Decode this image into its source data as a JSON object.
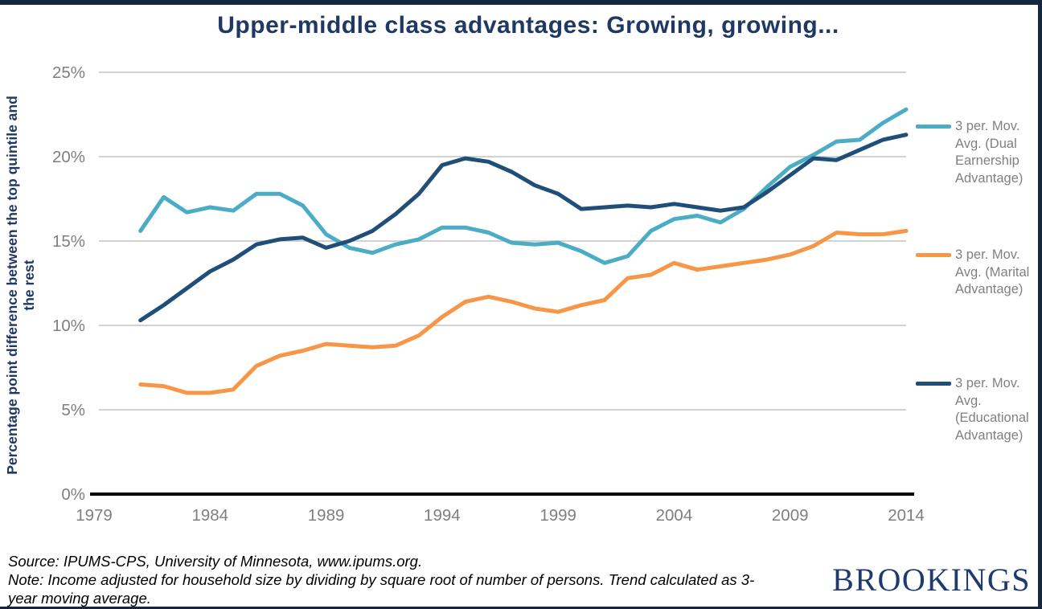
{
  "chart_data": {
    "type": "line",
    "title": "Upper-middle class advantages: Growing, growing...",
    "ylabel": "Percentage point difference between the top quintile and the rest",
    "ylabel_lines": [
      "Percentage point difference between the top quintile and",
      "the rest"
    ],
    "xlabel": "",
    "xlim": [
      1979,
      2014
    ],
    "ylim": [
      0,
      25
    ],
    "grid": "horizontal",
    "legend_position": "right",
    "y_ticks": [
      {
        "label": "25%",
        "value": 25
      },
      {
        "label": "20%",
        "value": 20
      },
      {
        "label": "15%",
        "value": 15
      },
      {
        "label": "10%",
        "value": 10
      },
      {
        "label": "5%",
        "value": 5
      },
      {
        "label": "0%",
        "value": 0
      }
    ],
    "x_ticks": [
      {
        "label": "1979",
        "value": 1979
      },
      {
        "label": "1984",
        "value": 1984
      },
      {
        "label": "1989",
        "value": 1989
      },
      {
        "label": "1994",
        "value": 1994
      },
      {
        "label": "1999",
        "value": 1999
      },
      {
        "label": "2004",
        "value": 2004
      },
      {
        "label": "2009",
        "value": 2009
      },
      {
        "label": "2014",
        "value": 2014
      }
    ],
    "years": [
      1981,
      1982,
      1983,
      1984,
      1985,
      1986,
      1987,
      1988,
      1989,
      1990,
      1991,
      1992,
      1993,
      1994,
      1995,
      1996,
      1997,
      1998,
      1999,
      2000,
      2001,
      2002,
      2003,
      2004,
      2005,
      2006,
      2007,
      2008,
      2009,
      2010,
      2011,
      2012,
      2013,
      2014
    ],
    "series": [
      {
        "name": "3 per. Mov. Avg. (Dual Earnership Advantage)",
        "color": "#4BACC6",
        "values": [
          15.6,
          17.6,
          16.7,
          17.0,
          16.8,
          17.8,
          17.8,
          17.1,
          15.4,
          14.6,
          14.3,
          14.8,
          15.1,
          15.8,
          15.8,
          15.5,
          14.9,
          14.8,
          14.9,
          14.4,
          13.7,
          14.1,
          15.6,
          16.3,
          16.5,
          16.1,
          16.9,
          18.2,
          19.4,
          20.1,
          20.9,
          21.0,
          22.0,
          22.8
        ]
      },
      {
        "name": "3 per. Mov. Avg. (Marital Advantage)",
        "color": "#F79646",
        "values": [
          6.5,
          6.4,
          6.0,
          6.0,
          6.2,
          7.6,
          8.2,
          8.5,
          8.9,
          8.8,
          8.7,
          8.8,
          9.4,
          10.5,
          11.4,
          11.7,
          11.4,
          11.0,
          10.8,
          11.2,
          11.5,
          12.8,
          13.0,
          13.7,
          13.3,
          13.5,
          13.7,
          13.9,
          14.2,
          14.7,
          15.5,
          15.4,
          15.4,
          15.6
        ]
      },
      {
        "name": "3 per. Mov. Avg. (Educational Advantage)",
        "color": "#1F4E79",
        "values": [
          10.3,
          11.2,
          12.2,
          13.2,
          13.9,
          14.8,
          15.1,
          15.2,
          14.6,
          15.0,
          15.6,
          16.6,
          17.8,
          19.5,
          19.9,
          19.7,
          19.1,
          18.3,
          17.8,
          16.9,
          17.0,
          17.1,
          17.0,
          17.2,
          17.0,
          16.8,
          17.0,
          17.9,
          18.9,
          19.9,
          19.8,
          20.4,
          21.0,
          21.3
        ]
      }
    ]
  },
  "footer": {
    "source_line": "Source: IPUMS-CPS, University of Minnesota, www.ipums.org.",
    "note_line1": "Note: Income adjusted for household size by dividing by square root of number of persons. Trend calculated as 3-",
    "note_line2": "year moving average.",
    "logo_text": "BROOKINGS"
  },
  "colors": {
    "title_navy": "#1F3864",
    "frame_navy": "#14273F",
    "logo_navy": "#1E3A6E",
    "tick_gray": "#7F7F7F",
    "legend_gray": "#808080",
    "gridline_gray": "#C4C4C4",
    "axis_black": "#000000"
  }
}
